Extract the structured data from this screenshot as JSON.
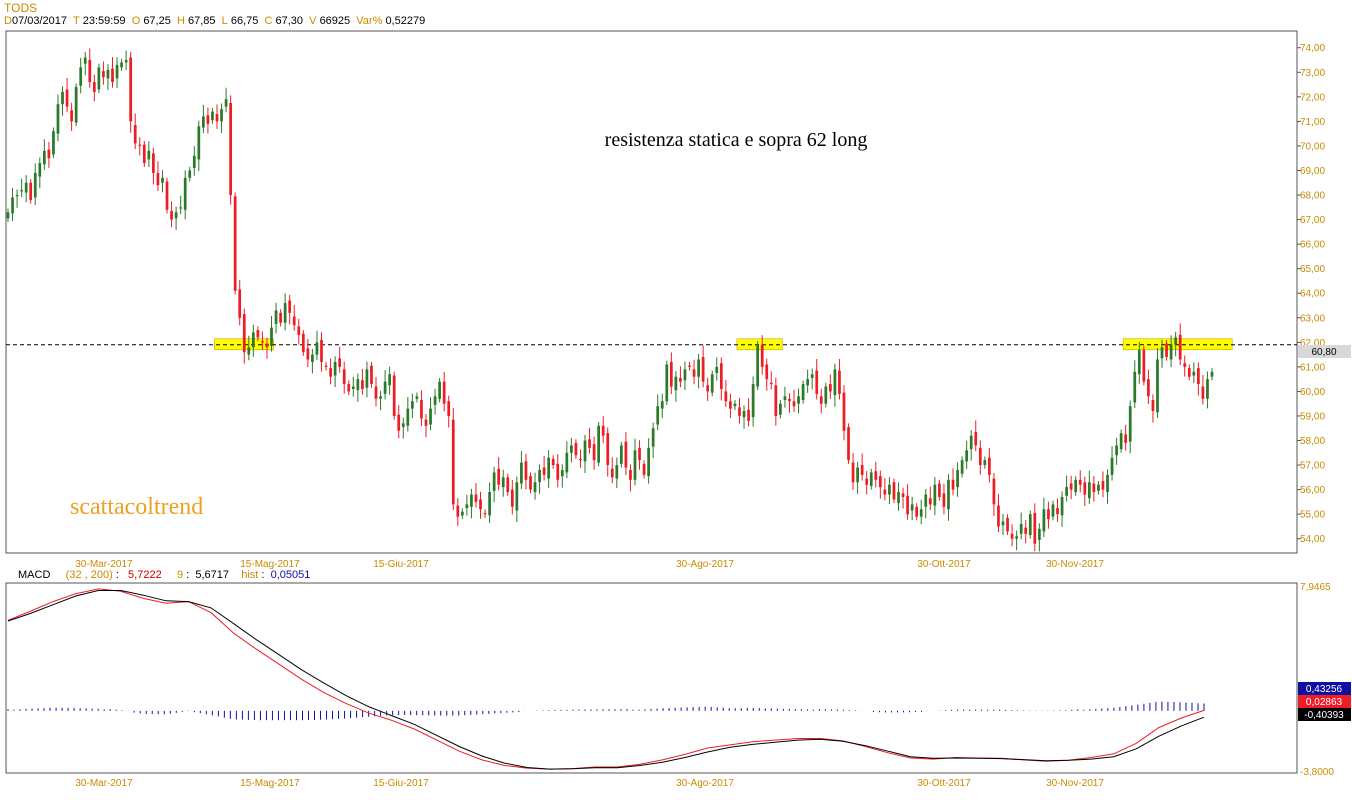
{
  "header": {
    "symbol": "TODS",
    "d_label": "D",
    "date": "07/03/2017",
    "t_label": "T",
    "time": "23:59:59",
    "o_label": "O",
    "open": "67,25",
    "h_label": "H",
    "high": "67,85",
    "l_label": "L",
    "low": "66,75",
    "c_label": "C",
    "close": "67,30",
    "v_label": "V",
    "volume": "66925",
    "var_label": "Var%",
    "var": "0,52279"
  },
  "annotations": {
    "note": "resistenza statica e sopra 62 long",
    "watermark": "scattacoltrend",
    "last_price": "60,80"
  },
  "colors": {
    "up_candle": "#2a7a2a",
    "down_candle": "#ee1c25",
    "zone": "#ffff00",
    "watermark": "#f0a020",
    "axis_label": "#c98a00",
    "macd_line": "#ee1c25",
    "signal_line": "#000000",
    "hist": "#1010a0"
  },
  "macd_info": {
    "label": "MACD",
    "params": "(32 , 200)",
    "macd_value": "5,7222",
    "signal_label": "9",
    "signal_value": "5,6717",
    "hist_label": "hist",
    "hist_value": "0,05051"
  },
  "chart_data": [
    {
      "type": "candlestick",
      "title": "TODS",
      "x_ticks": [
        "30-Mar-2017",
        "15-Mag-2017",
        "15-Giu-2017",
        "30-Ago-2017",
        "30-Ott-2017",
        "30-Nov-2017"
      ],
      "y_ticks": [
        "74,00",
        "73,00",
        "72,00",
        "71,00",
        "70,00",
        "69,00",
        "68,00",
        "67,00",
        "66,00",
        "65,00",
        "64,00",
        "63,00",
        "62,00",
        "61,00",
        "60,00",
        "59,00",
        "58,00",
        "57,00",
        "56,00",
        "55,00",
        "54,00"
      ],
      "ylim": [
        53.5,
        74.6
      ],
      "resistance_level": 61.9,
      "resistance_zones": [
        1,
        2,
        3
      ],
      "closes": [
        67.3,
        67.9,
        68.0,
        68.2,
        68.5,
        67.8,
        68.9,
        69.3,
        69.8,
        69.5,
        70.6,
        71.7,
        72.2,
        71.6,
        71.0,
        72.4,
        73.2,
        73.6,
        72.6,
        72.2,
        73.2,
        72.8,
        73.1,
        72.6,
        73.3,
        73.4,
        73.5,
        71.0,
        70.1,
        70.0,
        69.3,
        69.8,
        68.9,
        68.4,
        68.7,
        67.4,
        67.0,
        67.3,
        67.5,
        68.7,
        69.0,
        69.6,
        70.8,
        71.2,
        70.9,
        71.4,
        71.0,
        71.5,
        71.9,
        68.0,
        64.1,
        63.0,
        61.6,
        61.8,
        62.4,
        62.2,
        62.0,
        61.8,
        62.6,
        63.3,
        62.8,
        63.6,
        63.2,
        62.7,
        62.3,
        61.6,
        61.3,
        61.5,
        62.0,
        61.2,
        61.0,
        60.6,
        61.2,
        61.0,
        60.3,
        60.0,
        60.2,
        60.5,
        60.1,
        60.9,
        60.3,
        59.7,
        59.8,
        60.4,
        60.7,
        59.0,
        58.4,
        58.7,
        59.3,
        59.6,
        59.8,
        58.9,
        58.6,
        59.3,
        59.8,
        60.4,
        59.5,
        59.0,
        55.4,
        54.9,
        55.1,
        55.4,
        55.8,
        55.5,
        55.2,
        55.0,
        55.9,
        56.7,
        56.2,
        56.5,
        55.9,
        55.3,
        56.3,
        57.1,
        56.4,
        56.0,
        56.3,
        56.8,
        56.6,
        57.3,
        57.0,
        56.4,
        56.8,
        57.5,
        57.8,
        57.4,
        57.2,
        58.0,
        57.7,
        57.2,
        58.6,
        58.2,
        57.0,
        56.5,
        57.0,
        57.8,
        56.9,
        56.4,
        57.6,
        57.2,
        56.6,
        57.7,
        58.5,
        59.4,
        59.6,
        61.1,
        60.2,
        60.6,
        60.4,
        60.9,
        61.0,
        60.6,
        61.3,
        60.4,
        60.0,
        60.7,
        61.0,
        60.1,
        59.6,
        59.3,
        59.5,
        59.0,
        59.2,
        58.8,
        60.3,
        61.9,
        61.0,
        60.5,
        60.3,
        59.0,
        59.5,
        59.8,
        59.6,
        59.4,
        59.8,
        60.3,
        60.5,
        60.7,
        59.9,
        59.5,
        60.2,
        60.0,
        60.9,
        59.9,
        58.4,
        57.2,
        56.3,
        56.9,
        56.6,
        56.2,
        56.7,
        56.4,
        56.1,
        55.8,
        56.2,
        55.6,
        55.9,
        55.7,
        55.0,
        55.4,
        54.9,
        55.2,
        55.8,
        55.4,
        56.2,
        55.7,
        55.3,
        56.4,
        56.0,
        56.8,
        57.2,
        57.6,
        58.2,
        57.8,
        57.0,
        57.2,
        56.6,
        55.4,
        54.5,
        54.7,
        54.3,
        54.0,
        54.1,
        54.6,
        54.2,
        55.0,
        53.8,
        54.4,
        55.2,
        54.8,
        55.4,
        55.0,
        55.7,
        56.1,
        56.0,
        56.4,
        56.2,
        55.8,
        56.3,
        55.9,
        56.2,
        56.0,
        56.6,
        57.3,
        57.8,
        58.3,
        57.9,
        59.4,
        60.8,
        61.7,
        60.4,
        59.8,
        59.2,
        61.3,
        61.8,
        61.4,
        61.9,
        62.2,
        61.3,
        61.0,
        60.6,
        60.8,
        60.3,
        59.7,
        60.5,
        60.8
      ]
    },
    {
      "type": "line",
      "title": "MACD",
      "y_ticks": [
        "7,9465",
        "-3,8000"
      ],
      "ylim": [
        -3.8,
        7.9465
      ],
      "value_tags": [
        "0,43256",
        "0,02863",
        "-0,40393"
      ],
      "series": [
        {
          "name": "MACD",
          "values": [
            5.72,
            6.3,
            6.9,
            7.4,
            7.7,
            7.55,
            7.1,
            6.8,
            6.9,
            6.2,
            4.9,
            3.9,
            2.95,
            2.0,
            1.15,
            0.45,
            -0.15,
            -0.6,
            -1.15,
            -1.85,
            -2.55,
            -3.1,
            -3.45,
            -3.62,
            -3.68,
            -3.65,
            -3.55,
            -3.55,
            -3.38,
            -3.1,
            -2.75,
            -2.35,
            -2.15,
            -1.95,
            -1.85,
            -1.75,
            -1.75,
            -1.9,
            -2.25,
            -2.65,
            -2.98,
            -3.05,
            -2.95,
            -2.98,
            -3.0,
            -3.1,
            -3.18,
            -3.12,
            -2.95,
            -2.72,
            -2.05,
            -1.05,
            -0.45,
            0.03
          ]
        },
        {
          "name": "9",
          "values": [
            5.67,
            6.15,
            6.7,
            7.25,
            7.6,
            7.6,
            7.3,
            6.95,
            6.9,
            6.5,
            5.5,
            4.5,
            3.55,
            2.6,
            1.75,
            0.95,
            0.25,
            -0.3,
            -0.85,
            -1.55,
            -2.25,
            -2.85,
            -3.3,
            -3.58,
            -3.68,
            -3.66,
            -3.6,
            -3.6,
            -3.45,
            -3.25,
            -2.95,
            -2.6,
            -2.3,
            -2.12,
            -1.98,
            -1.85,
            -1.8,
            -1.92,
            -2.2,
            -2.55,
            -2.9,
            -3.0,
            -2.98,
            -3.0,
            -3.02,
            -3.08,
            -3.15,
            -3.12,
            -3.05,
            -2.9,
            -2.4,
            -1.6,
            -0.95,
            -0.4
          ]
        },
        {
          "name": "hist",
          "values": [
            0.05,
            0.13,
            0.18,
            0.17,
            0.12,
            0.0,
            -0.18,
            -0.2,
            -0.02,
            -0.25,
            -0.5,
            -0.55,
            -0.55,
            -0.55,
            -0.52,
            -0.45,
            -0.35,
            -0.25,
            -0.25,
            -0.28,
            -0.28,
            -0.2,
            -0.12,
            -0.05,
            0.0,
            0.02,
            0.04,
            0.05,
            0.07,
            0.15,
            0.2,
            0.25,
            0.15,
            0.17,
            0.13,
            0.1,
            0.05,
            0.02,
            -0.05,
            -0.1,
            -0.08,
            -0.05,
            0.03,
            0.02,
            0.02,
            -0.02,
            -0.03,
            0.0,
            0.1,
            0.18,
            0.35,
            0.55,
            0.5,
            0.43
          ]
        }
      ]
    }
  ]
}
